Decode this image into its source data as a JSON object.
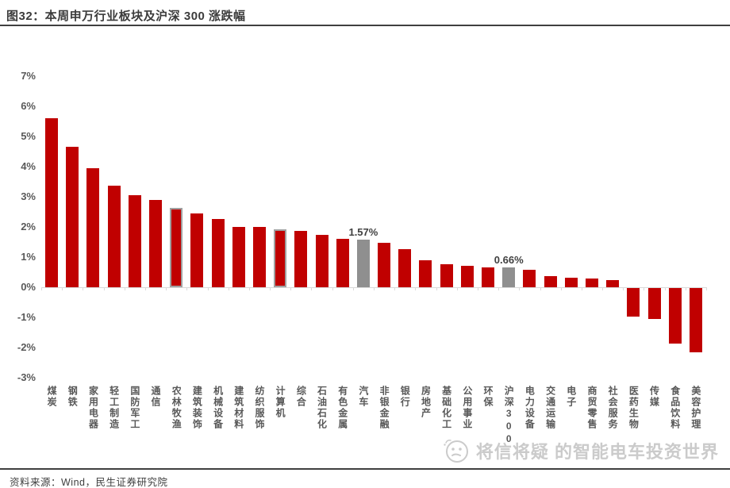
{
  "header": {
    "title": "图32：本周申万行业板块及沪深 300 涨跌幅"
  },
  "watermark": {
    "icon": "thinking-face-icon",
    "text": "将信将疑 的智能电车投资世界"
  },
  "footer": {
    "source": "资料来源：Wind，民生证券研究院"
  },
  "chart_data": {
    "type": "bar",
    "title": "本周申万行业板块及沪深300涨跌幅",
    "unit": "%",
    "ylim": [
      -3,
      7
    ],
    "yticks": [
      "7%",
      "6%",
      "5%",
      "4%",
      "3%",
      "2%",
      "1%",
      "0%",
      "-1%",
      "-2%",
      "-3%"
    ],
    "grid": false,
    "legend": "none",
    "categories": [
      "煤炭",
      "钢铁",
      "家用电器",
      "轻工制造",
      "国防军工",
      "通信",
      "农林牧渔",
      "建筑装饰",
      "机械设备",
      "建筑材料",
      "纺织服饰",
      "计算机",
      "综合",
      "石油石化",
      "有色金属",
      "汽车",
      "非银金融",
      "银行",
      "房地产",
      "基础化工",
      "公用事业",
      "环保",
      "沪深300",
      "电力设备",
      "交通运输",
      "电子",
      "商贸零售",
      "社会服务",
      "医药生物",
      "传媒",
      "食品饮料",
      "美容护理"
    ],
    "values": [
      5.6,
      4.67,
      3.95,
      3.37,
      3.06,
      2.9,
      2.64,
      2.44,
      2.27,
      2.01,
      1.99,
      1.91,
      1.86,
      1.74,
      1.61,
      1.57,
      1.47,
      1.26,
      0.89,
      0.76,
      0.7,
      0.67,
      0.66,
      0.57,
      0.37,
      0.31,
      0.3,
      0.25,
      -0.95,
      -1.02,
      -1.83,
      -2.12
    ],
    "bar_color_default": "#c00000",
    "bar_color_gray": "#8f8f8f",
    "gray_bars": [
      "汽车",
      "沪深300"
    ],
    "outlined_bars": [
      "农林牧渔",
      "计算机"
    ],
    "outline_color": "#a0a0a0",
    "axis_color": "#d9d9d9",
    "label_color": "#595959",
    "annotations": [
      {
        "category": "汽车",
        "text": "1.57%"
      },
      {
        "category": "沪深300",
        "text": "0.66%"
      }
    ]
  }
}
